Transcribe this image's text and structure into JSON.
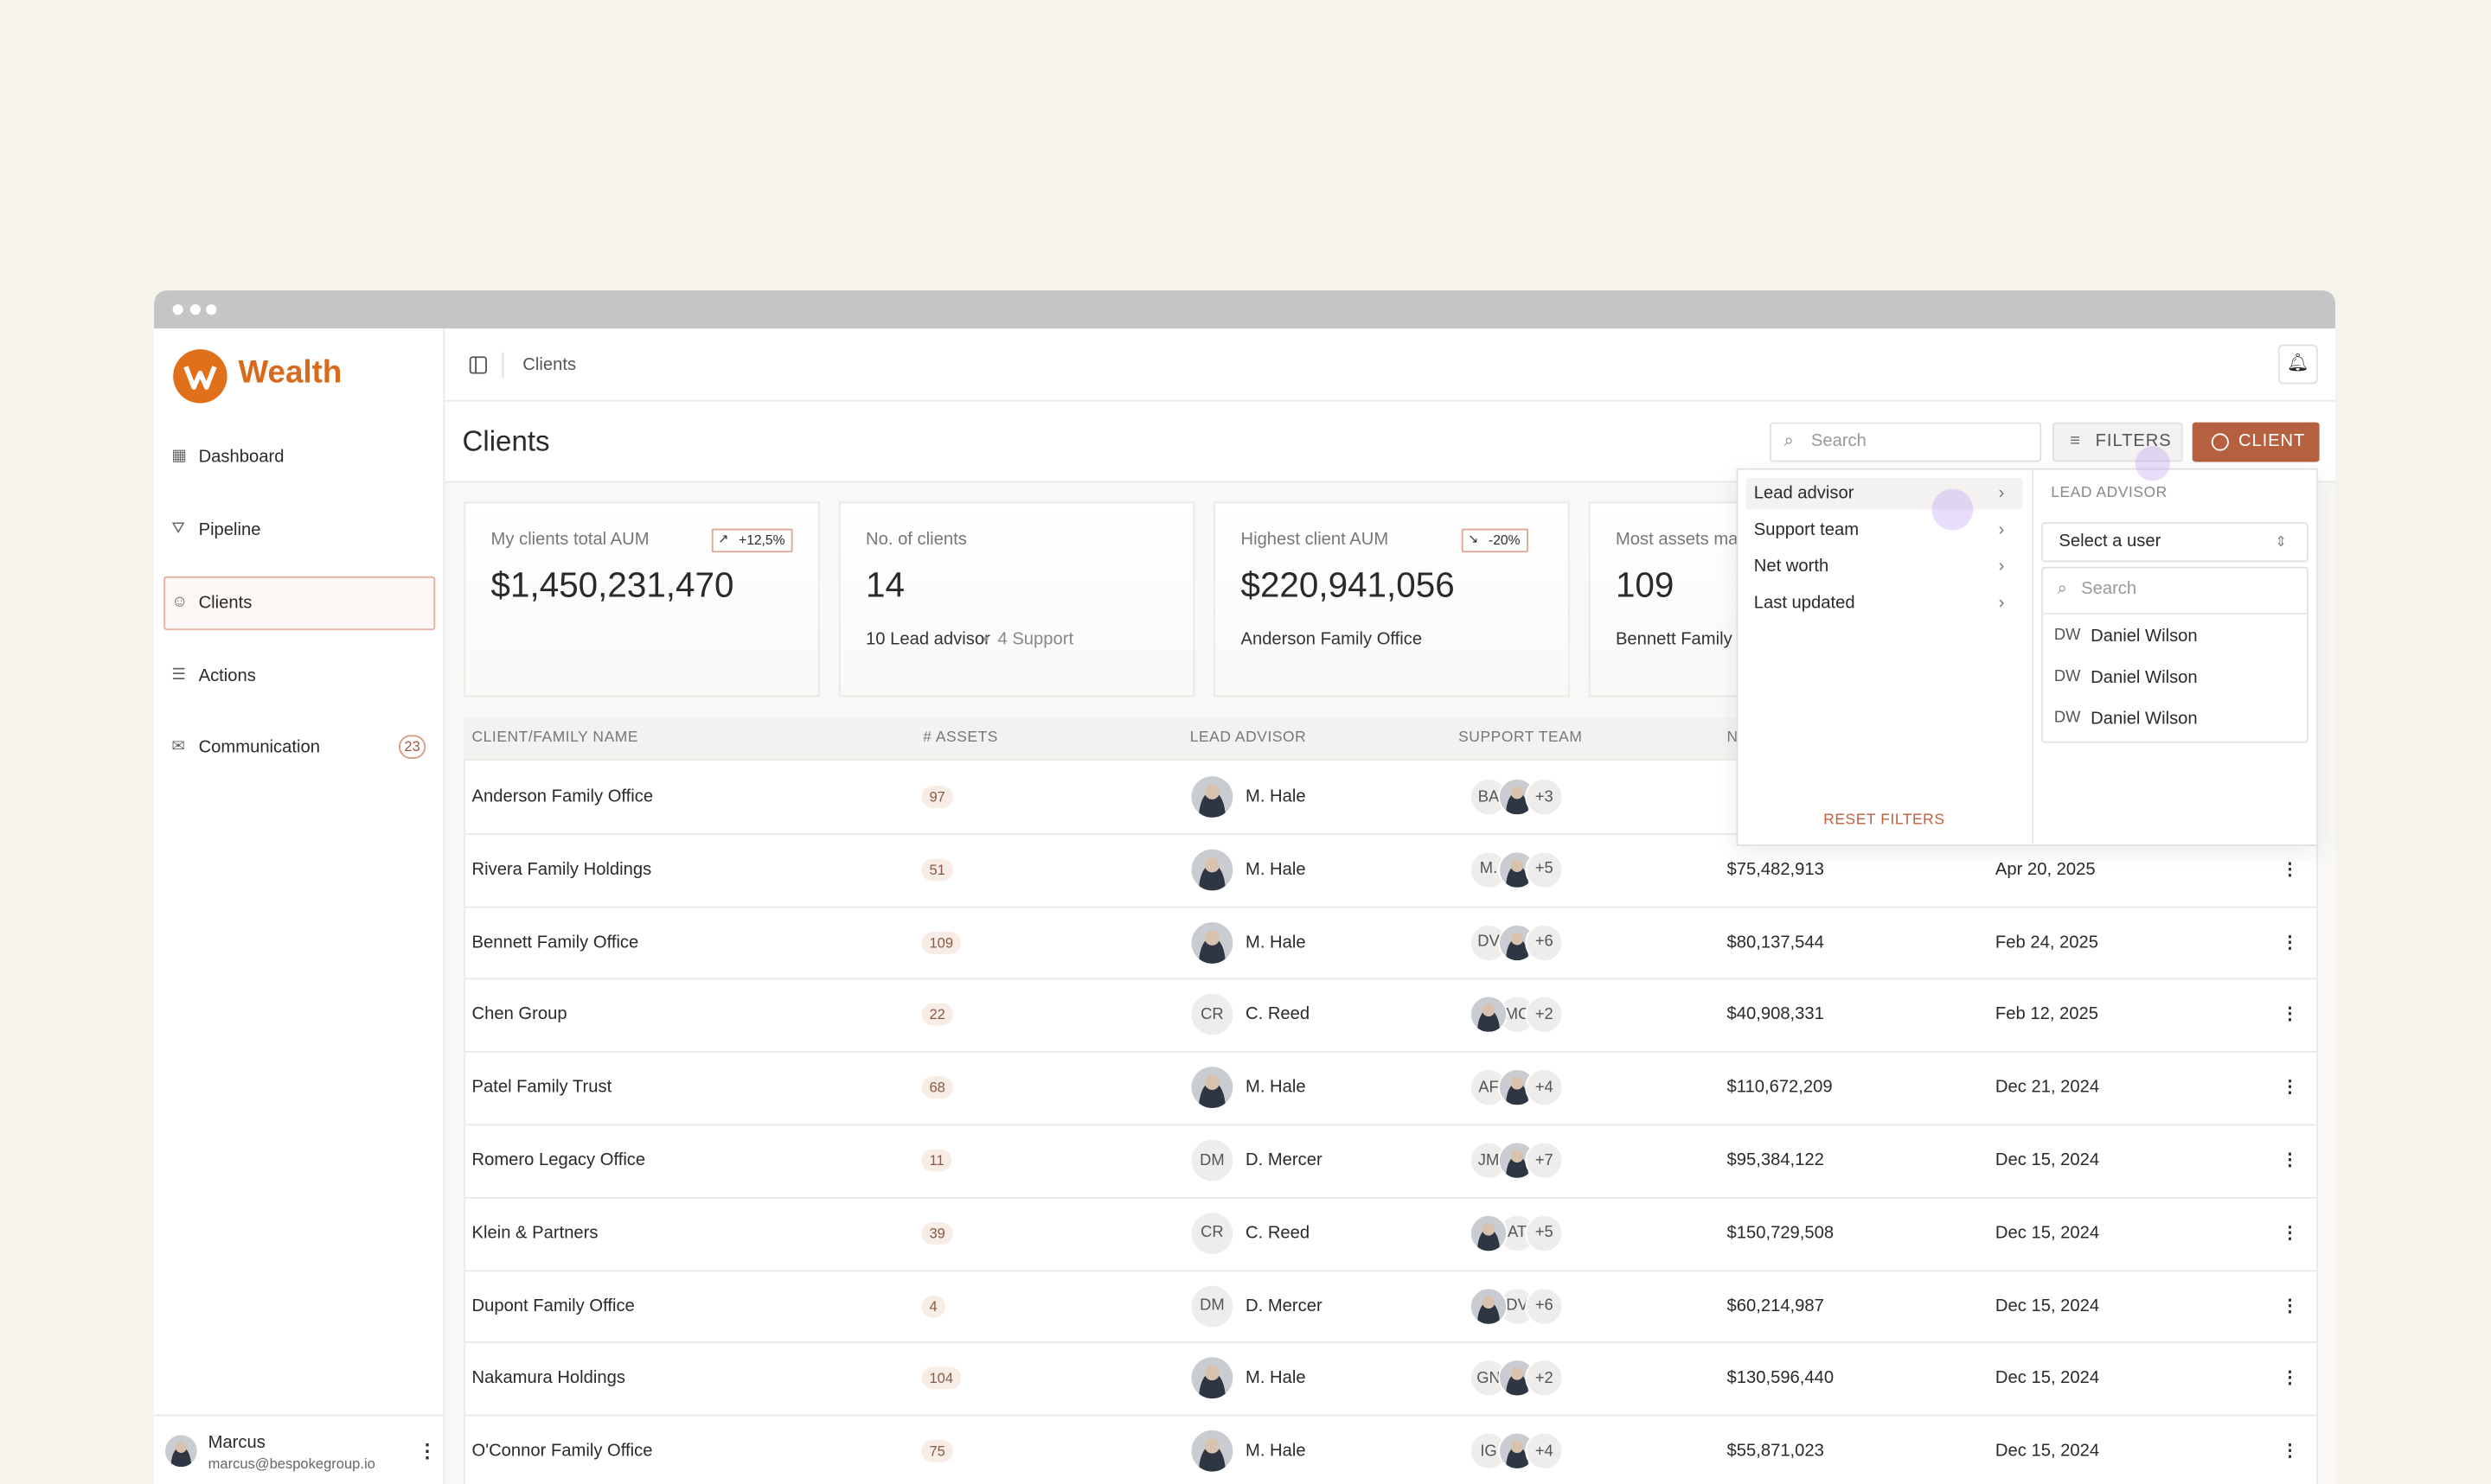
{
  "sidebar": {
    "brand": "Wealth",
    "nav": [
      {
        "label": "Dashboard"
      },
      {
        "label": "Pipeline"
      },
      {
        "label": "Clients",
        "active": true
      },
      {
        "label": "Actions"
      },
      {
        "label": "Communication",
        "badge": "23"
      }
    ],
    "user": {
      "name": "Marcus",
      "email": "marcus@bespokegroup.io"
    }
  },
  "header": {
    "breadcrumb": "Clients",
    "title": "Clients",
    "search_placeholder": "Search",
    "filters_button": "FILTERS",
    "client_button": "CLIENT"
  },
  "stats": [
    {
      "label": "My clients total AUM",
      "value": "$1,450,231,470",
      "delta": "+12,5%",
      "trend": "up"
    },
    {
      "label": "No. of clients",
      "value": "14",
      "sub": [
        "10 Lead advisor",
        "4 Support"
      ]
    },
    {
      "label": "Highest client AUM",
      "value": "$220,941,056",
      "delta": "-20%",
      "trend": "down",
      "sub": [
        "Anderson Family Office"
      ]
    },
    {
      "label": "Most assets ma",
      "value": "109",
      "sub": [
        "Bennett Family O"
      ]
    }
  ],
  "table": {
    "headers": [
      "CLIENT/FAMILY NAME",
      "# ASSETS",
      "LEAD ADVISOR",
      "SUPPORT TEAM",
      "N"
    ],
    "rows": [
      {
        "name": "Anderson Family Office",
        "assets": "97",
        "lead": "M. Hale",
        "support": "BA",
        "more": "+3"
      },
      {
        "name": "Rivera Family Holdings",
        "assets": "51",
        "lead": "M. Hale",
        "support": "M.",
        "more": "+5",
        "networth": "$75,482,913",
        "updated": "Apr 20, 2025"
      },
      {
        "name": "Bennett Family Office",
        "assets": "109",
        "lead": "M. Hale",
        "support": "DV",
        "more": "+6",
        "networth": "$80,137,544",
        "updated": "Feb 24, 2025"
      },
      {
        "name": "Chen Group",
        "assets": "22",
        "lead_initials": "CR",
        "lead": "C. Reed",
        "support": "MC",
        "support_photo_first": true,
        "more": "+2",
        "networth": "$40,908,331",
        "updated": "Feb 12, 2025"
      },
      {
        "name": "Patel Family Trust",
        "assets": "68",
        "lead": "M. Hale",
        "support": "AF",
        "more": "+4",
        "networth": "$110,672,209",
        "updated": "Dec 21, 2024"
      },
      {
        "name": "Romero Legacy Office",
        "assets": "11",
        "lead_initials": "DM",
        "lead": "D. Mercer",
        "support": "JM",
        "more": "+7",
        "networth": "$95,384,122",
        "updated": "Dec 15, 2024"
      },
      {
        "name": "Klein & Partners",
        "assets": "39",
        "lead_initials": "CR",
        "lead": "C. Reed",
        "support": "AT",
        "support_photo_first": true,
        "more": "+5",
        "networth": "$150,729,508",
        "updated": "Dec 15, 2024"
      },
      {
        "name": "Dupont Family Office",
        "assets": "4",
        "lead_initials": "DM",
        "lead": "D. Mercer",
        "support": "DV",
        "support_photo_first": true,
        "more": "+6",
        "networth": "$60,214,987",
        "updated": "Dec 15, 2024"
      },
      {
        "name": "Nakamura Holdings",
        "assets": "104",
        "lead": "M. Hale",
        "support": "GN",
        "more": "+2",
        "networth": "$130,596,440",
        "updated": "Dec 15, 2024"
      },
      {
        "name": "O'Connor Family Office",
        "assets": "75",
        "lead": "M. Hale",
        "support": "IG",
        "more": "+4",
        "networth": "$55,871,023",
        "updated": "Dec 15, 2024"
      }
    ]
  },
  "filters": {
    "menu": [
      "Lead advisor",
      "Support team",
      "Net worth",
      "Last updated"
    ],
    "reset": "RESET FILTERS",
    "panel_title": "LEAD ADVISOR",
    "select_placeholder": "Select a user",
    "search_placeholder": "Search",
    "users": [
      {
        "initials": "DW",
        "name": "Daniel Wilson"
      },
      {
        "initials": "DW",
        "name": "Daniel Wilson"
      },
      {
        "initials": "DW",
        "name": "Daniel Wilson"
      }
    ]
  }
}
